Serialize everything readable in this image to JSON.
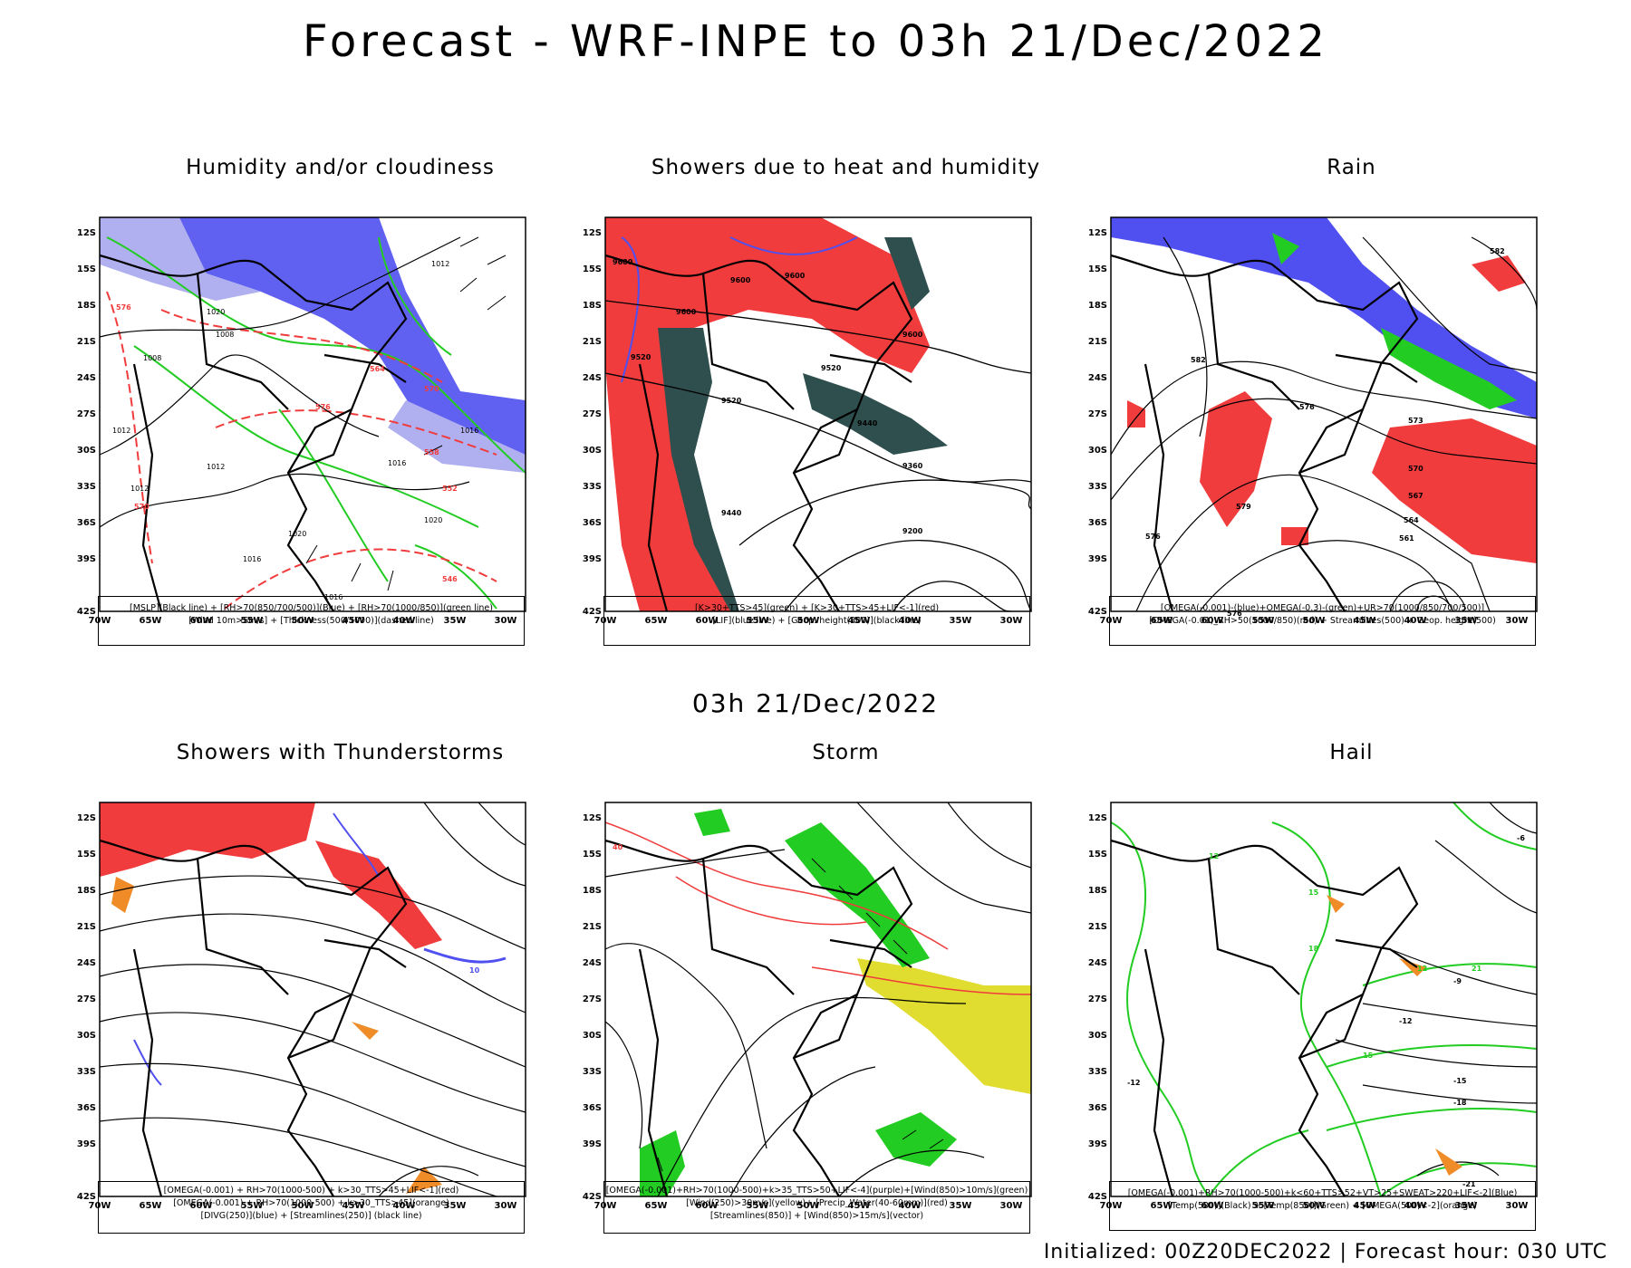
{
  "main_title": "Forecast - WRF-INPE to 03h 21/Dec/2022",
  "sub_title": "03h 21/Dec/2022",
  "footer": "Initialized: 00Z20DEC2022 | Forecast hour: 030 UTC",
  "axes": {
    "lat_labels": [
      "12S",
      "15S",
      "18S",
      "21S",
      "24S",
      "27S",
      "30S",
      "33S",
      "36S",
      "39S",
      "42S"
    ],
    "lon_labels": [
      "70W",
      "65W",
      "60W",
      "55W",
      "50W",
      "45W",
      "40W",
      "35W",
      "30W"
    ]
  },
  "panels": [
    {
      "title": "Humidity and/or cloudiness",
      "legend": [
        "[MSLP](Black line) + [RH>70(850/700/500)](Blue) + [RH>70(1000/850)](green line)",
        "[Wind 10m>5m/s] + [Thickness(500/1000)](dashed line)"
      ],
      "contour_labels": [
        "1012",
        "1016",
        "1020",
        "1008",
        "1008",
        "1012",
        "1016",
        "1020",
        "1012",
        "1016",
        "1012",
        "1016",
        "1020"
      ],
      "red_labels": [
        "576",
        "570",
        "564",
        "558",
        "552",
        "546",
        "576",
        "570"
      ]
    },
    {
      "title": "Showers due to heat and humidity",
      "legend": [
        "[K>30+TTS>45](green) + [K>30+TTS>45+LIF<-1](red)",
        "[LIF](blue line) + [Geop. height(300)](black line)"
      ],
      "contour_labels": [
        "9600",
        "9600",
        "9600",
        "9600",
        "9600",
        "9520",
        "9520",
        "9520",
        "9440",
        "9360",
        "9440",
        "9200"
      ]
    },
    {
      "title": "Rain",
      "legend": [
        "[OMEGA(-0.001)-(blue)+OMEGA(-0.3)-(green)+UR>70(1000/850/700/500)]",
        "[OMEGA(-0.01)_RH>50(1000/850)(red) + Streamlines(500) + Geop. height(500)"
      ],
      "contour_labels": [
        "582",
        "582",
        "579",
        "576",
        "576",
        "573",
        "570",
        "567",
        "564",
        "561",
        "576"
      ]
    },
    {
      "title": "Showers with Thunderstorms",
      "legend": [
        "[OMEGA(-0.001) + RH>70(1000-500) + k>30_TTS>45+LIF<-1](red)",
        "[OMEGA(-0.001) + RH>70(1000-500) + k>30_TTS>45](orange)",
        "[DIVG(250)](blue) + [Streamlines(250)] (black line)"
      ],
      "contour_labels": [
        "10"
      ]
    },
    {
      "title": "Storm",
      "legend": [
        "[OMEGA(-0.001)+RH>70(1000-500)+k>35_TTS>50+LIF<-4](purple)+[Wind(850)>10m/s](green)",
        "[Wind(250)>30m/s](yellow)+ [Precip_Water(40-60mm)](red)",
        "[Streamlines(850)] + [Wind(850)>15m/s](vector)"
      ],
      "contour_labels": [
        "40"
      ]
    },
    {
      "title": "Hail",
      "legend": [
        "[OMEGA(-0.001)+RH>70(1000-500)+k<60+TTS>52+VT>25+SWEAT>220+LIF<-2](Blue)",
        "[Temp(500)](Black) + [Temp(850)](Green) + [OMEGA(500)<-2](orange)"
      ],
      "contour_labels": [
        "-6",
        "-9",
        "-12",
        "-12",
        "-15",
        "-18",
        "-21",
        "12",
        "15",
        "18",
        "21",
        "12",
        "15"
      ]
    }
  ],
  "colors": {
    "blue_fill": "#5050f0",
    "light_blue": "#b0b0f0",
    "green": "#22cc22",
    "red": "#f03c3c",
    "dark_teal": "#2f4f4f",
    "orange": "#f08c28",
    "yellow": "#e0dc30"
  }
}
